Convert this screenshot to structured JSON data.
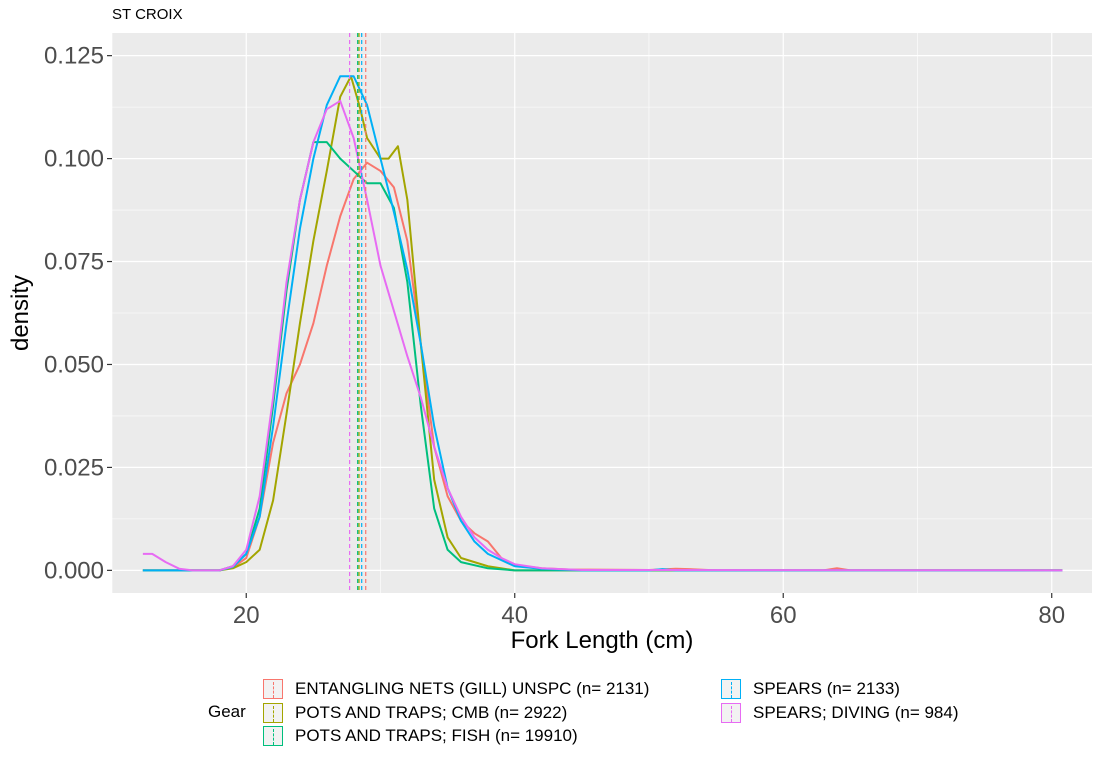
{
  "chart_data": {
    "type": "line",
    "subtitle": "ST CROIX",
    "xlabel": "Fork Length (cm)",
    "ylabel": "density",
    "xlim": [
      10,
      83
    ],
    "ylim": [
      -0.0055,
      0.1305
    ],
    "xticks": [
      20,
      40,
      60,
      80
    ],
    "xtick_labels": [
      "20",
      "40",
      "60",
      "80"
    ],
    "yticks": [
      0.0,
      0.025,
      0.05,
      0.075,
      0.1,
      0.125
    ],
    "ytick_labels": [
      "0.000",
      "0.025",
      "0.050",
      "0.075",
      "0.100",
      "0.125"
    ],
    "grid": true,
    "legend_title": "Gear",
    "legend_position": "bottom",
    "series": [
      {
        "name": "ENTANGLING NETS (GILL) UNSPC (n= 2131)",
        "color": "#F8766D",
        "mean": 28.9,
        "points": [
          [
            12.3,
            0.0
          ],
          [
            18,
            0.0
          ],
          [
            19,
            0.0007
          ],
          [
            20,
            0.003
          ],
          [
            21,
            0.013
          ],
          [
            22,
            0.031
          ],
          [
            23,
            0.043
          ],
          [
            24,
            0.05
          ],
          [
            25,
            0.06
          ],
          [
            26,
            0.074
          ],
          [
            27,
            0.086
          ],
          [
            28,
            0.095
          ],
          [
            29,
            0.099
          ],
          [
            30,
            0.097
          ],
          [
            31,
            0.093
          ],
          [
            32,
            0.08
          ],
          [
            33,
            0.055
          ],
          [
            34,
            0.03
          ],
          [
            35,
            0.018
          ],
          [
            36,
            0.012
          ],
          [
            37,
            0.009
          ],
          [
            38,
            0.007
          ],
          [
            39,
            0.003
          ],
          [
            40,
            0.0013
          ],
          [
            42,
            0.0005
          ],
          [
            44,
            0.0002
          ],
          [
            50,
            0.0001
          ],
          [
            52,
            0.0004
          ],
          [
            53,
            0.0003
          ],
          [
            55,
            0.0
          ],
          [
            63,
            0.0
          ],
          [
            64,
            0.0005
          ],
          [
            65,
            0.0
          ],
          [
            70,
            0.0
          ],
          [
            80.8,
            0.0
          ]
        ]
      },
      {
        "name": "POTS AND TRAPS; CMB (n= 2922)",
        "color": "#A3A500",
        "mean": 28.4,
        "points": [
          [
            12.3,
            0.0
          ],
          [
            18,
            0.0
          ],
          [
            19,
            0.0005
          ],
          [
            20,
            0.002
          ],
          [
            21,
            0.005
          ],
          [
            22,
            0.017
          ],
          [
            23,
            0.038
          ],
          [
            24,
            0.06
          ],
          [
            25,
            0.08
          ],
          [
            26,
            0.097
          ],
          [
            27,
            0.115
          ],
          [
            27.8,
            0.12
          ],
          [
            28.5,
            0.112
          ],
          [
            29,
            0.105
          ],
          [
            30,
            0.1
          ],
          [
            30.6,
            0.1
          ],
          [
            31.3,
            0.103
          ],
          [
            32,
            0.09
          ],
          [
            33,
            0.055
          ],
          [
            34,
            0.022
          ],
          [
            35,
            0.008
          ],
          [
            36,
            0.003
          ],
          [
            37,
            0.002
          ],
          [
            38,
            0.001
          ],
          [
            40,
            0.0
          ],
          [
            45,
            0.0
          ],
          [
            80.8,
            0.0
          ]
        ]
      },
      {
        "name": "POTS AND TRAPS; FISH (n= 19910)",
        "color": "#00BF7D",
        "mean": 28.3,
        "points": [
          [
            12.3,
            0.0
          ],
          [
            18,
            0.0
          ],
          [
            19,
            0.001
          ],
          [
            20,
            0.004
          ],
          [
            21,
            0.015
          ],
          [
            22,
            0.04
          ],
          [
            23,
            0.068
          ],
          [
            24,
            0.09
          ],
          [
            25,
            0.104
          ],
          [
            26,
            0.104
          ],
          [
            27,
            0.1
          ],
          [
            28,
            0.097
          ],
          [
            29,
            0.094
          ],
          [
            30,
            0.094
          ],
          [
            31,
            0.088
          ],
          [
            32,
            0.07
          ],
          [
            33,
            0.04
          ],
          [
            34,
            0.015
          ],
          [
            35,
            0.005
          ],
          [
            36,
            0.002
          ],
          [
            38,
            0.0005
          ],
          [
            40,
            0.0
          ],
          [
            45,
            0.0
          ],
          [
            80.8,
            0.0
          ]
        ]
      },
      {
        "name": "SPEARS (n= 2133)",
        "color": "#00B0F6",
        "mean": 28.6,
        "points": [
          [
            12.3,
            0.0
          ],
          [
            18,
            0.0
          ],
          [
            19,
            0.0008
          ],
          [
            20,
            0.004
          ],
          [
            21,
            0.013
          ],
          [
            22,
            0.035
          ],
          [
            23,
            0.06
          ],
          [
            24,
            0.083
          ],
          [
            25,
            0.1
          ],
          [
            26,
            0.113
          ],
          [
            27,
            0.12
          ],
          [
            28,
            0.12
          ],
          [
            29,
            0.113
          ],
          [
            30,
            0.1
          ],
          [
            31,
            0.087
          ],
          [
            32,
            0.073
          ],
          [
            33,
            0.055
          ],
          [
            34,
            0.035
          ],
          [
            35,
            0.02
          ],
          [
            36,
            0.012
          ],
          [
            37,
            0.007
          ],
          [
            38,
            0.004
          ],
          [
            40,
            0.001
          ],
          [
            42,
            0.0004
          ],
          [
            45,
            0.0
          ],
          [
            50,
            0.0
          ],
          [
            51,
            0.0003
          ],
          [
            52,
            0.0
          ],
          [
            80.8,
            0.0
          ]
        ]
      },
      {
        "name": "SPEARS; DIVING (n= 984)",
        "color": "#E76BF3",
        "mean": 27.7,
        "points": [
          [
            12.3,
            0.004
          ],
          [
            13,
            0.004
          ],
          [
            14,
            0.002
          ],
          [
            15,
            0.0004
          ],
          [
            16,
            0.0
          ],
          [
            18,
            0.0
          ],
          [
            19,
            0.001
          ],
          [
            20,
            0.005
          ],
          [
            21,
            0.018
          ],
          [
            22,
            0.042
          ],
          [
            23,
            0.07
          ],
          [
            24,
            0.09
          ],
          [
            25,
            0.104
          ],
          [
            26,
            0.112
          ],
          [
            27,
            0.114
          ],
          [
            28,
            0.105
          ],
          [
            29,
            0.09
          ],
          [
            30,
            0.074
          ],
          [
            31,
            0.063
          ],
          [
            32,
            0.052
          ],
          [
            33,
            0.042
          ],
          [
            34,
            0.03
          ],
          [
            35,
            0.02
          ],
          [
            36,
            0.013
          ],
          [
            37,
            0.008
          ],
          [
            38,
            0.005
          ],
          [
            39,
            0.003
          ],
          [
            40,
            0.0015
          ],
          [
            42,
            0.0005
          ],
          [
            45,
            0.0001
          ],
          [
            80.8,
            0.0
          ]
        ]
      }
    ]
  }
}
